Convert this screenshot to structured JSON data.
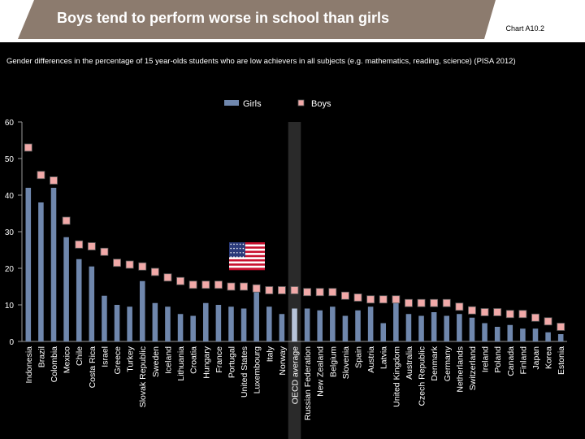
{
  "header": {
    "title": "Boys tend to perform worse in school than girls",
    "chart_ref": "Chart A10.2"
  },
  "subtitle": "Gender differences in the percentage of 15 year-olds students who are low achievers in all subjects (e.g. mathematics, reading, science) (PISA 2012)",
  "colors": {
    "girls_bar": "#6f87ad",
    "oecd_bar": "#b7c4da",
    "boys_marker": "#f1a9a8",
    "highlight": "#2a2a2a",
    "axis": "#9a9a9a",
    "header_band": "#ffffff",
    "title_bg": "#8c7b6e"
  },
  "chart_data": {
    "type": "bar",
    "title": "",
    "xlabel": "",
    "ylabel": "",
    "ylim": [
      0,
      60
    ],
    "yticks": [
      0,
      10,
      20,
      30,
      40,
      50,
      60
    ],
    "legend": [
      "Girls",
      "Boys"
    ],
    "legend_position": "top-center",
    "highlight_category": "OECD average",
    "categories": [
      "Indonesia",
      "Brazil",
      "Colombia",
      "Mexico",
      "Chile",
      "Costa Rica",
      "Israel",
      "Greece",
      "Turkey",
      "Slovak Republic",
      "Sweden",
      "Iceland",
      "Lithuania",
      "Croatia",
      "Hungary",
      "France",
      "Portugal",
      "United States",
      "Luxembourg",
      "Italy",
      "Norway",
      "OECD average",
      "Russian Federation",
      "New Zealand",
      "Belgium",
      "Slovenia",
      "Spain",
      "Austria",
      "Latvia",
      "United Kingdom",
      "Australia",
      "Czech Republic",
      "Denmark",
      "Germany",
      "Netherlands",
      "Switzerland",
      "Ireland",
      "Poland",
      "Canada",
      "Finland",
      "Japan",
      "Korea",
      "Estonia"
    ],
    "series": [
      {
        "name": "Girls",
        "type": "bar",
        "values": [
          42,
          38,
          42,
          28.5,
          22.5,
          20.5,
          12.5,
          10,
          9.5,
          16.5,
          10.5,
          9.5,
          7.5,
          7,
          10.5,
          10,
          9.5,
          9,
          13.5,
          9.5,
          7.5,
          9,
          9,
          8.5,
          9.5,
          7,
          8.5,
          9.5,
          5,
          11,
          7.5,
          7,
          8,
          7,
          7.5,
          6.5,
          5,
          4,
          4.5,
          3.5,
          3.5,
          2.5,
          2
        ]
      },
      {
        "name": "Boys",
        "type": "marker",
        "values": [
          53,
          45.5,
          44,
          33,
          26.5,
          26,
          24.5,
          21.5,
          21,
          20.5,
          19,
          17.5,
          16.5,
          15.5,
          15.5,
          15.5,
          15,
          15,
          14.5,
          14,
          14,
          14,
          13.5,
          13.5,
          13.5,
          12.5,
          12,
          11.5,
          11.5,
          11.5,
          10.5,
          10.5,
          10.5,
          10.5,
          9.5,
          8.5,
          8,
          8,
          7.5,
          7.5,
          6.5,
          5.5,
          4
        ]
      }
    ]
  }
}
